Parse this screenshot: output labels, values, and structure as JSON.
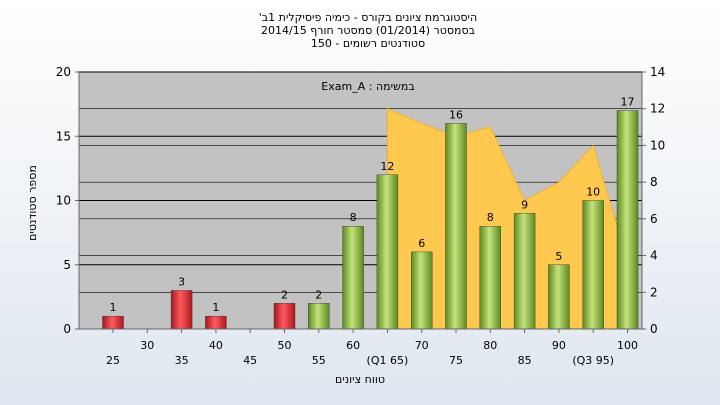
{
  "chart_data": {
    "type": "bar",
    "title_lines": [
      "היסטוגרמת ציונים בקורס - כימיה פיסיקלית 1ב'",
      "בסמסטר  (01/2014)  סמסטר חורף  2014/15",
      "סטודנטים רשומים - 150"
    ],
    "note": "במשימה : Exam_A",
    "xlabel": "טווח ציונים",
    "ylabel": "מספר סטודנטים",
    "ylim": [
      0,
      20
    ],
    "yticks": [
      "0",
      "5",
      "10",
      "15",
      "20"
    ],
    "y2lim": [
      0,
      14
    ],
    "y2ticks": [
      "0",
      "2",
      "4",
      "6",
      "8",
      "10",
      "12",
      "14"
    ],
    "categories": [
      "25",
      "30",
      "35",
      "40",
      "45",
      "50",
      "55",
      "60",
      "(Q1 65)",
      "70",
      "75",
      "80",
      "85",
      "90",
      "(Q3 95)",
      "100"
    ],
    "values": [
      1,
      0,
      3,
      1,
      0,
      2,
      2,
      8,
      12,
      6,
      16,
      8,
      9,
      5,
      10,
      17
    ],
    "data_labels": [
      "1",
      "",
      "3",
      "1",
      "",
      "2",
      "2",
      "8",
      "12",
      "6",
      "16",
      "8",
      "9",
      "5",
      "10",
      "17"
    ],
    "area_series_y2": [
      null,
      null,
      null,
      null,
      null,
      null,
      null,
      null,
      12,
      11.2,
      10.5,
      11,
      7,
      8,
      10,
      3.7
    ],
    "colors": {
      "fail_bar": "#e23a3f",
      "pass_bar": "#8cbd3f",
      "area": "#ffc84f",
      "plot_bg": "#c2c2c2",
      "grid": "#000000"
    },
    "grid": true
  }
}
